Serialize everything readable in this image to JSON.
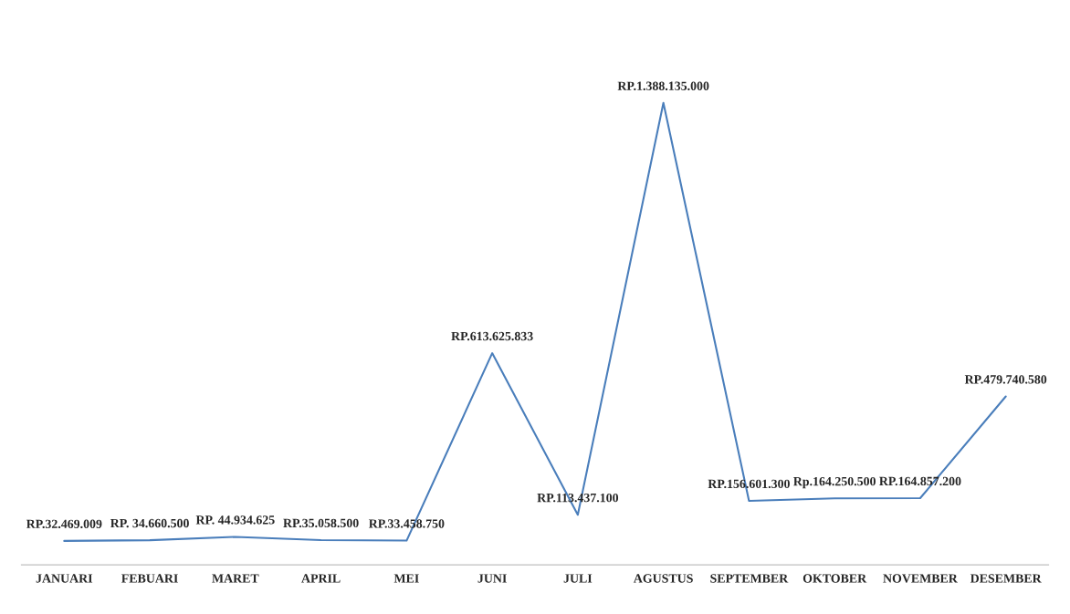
{
  "chart_data": {
    "type": "line",
    "categories": [
      "JANUARI",
      "FEBUARI",
      "MARET",
      "APRIL",
      "MEI",
      "JUNI",
      "JULI",
      "AGUSTUS",
      "SEPTEMBER",
      "OKTOBER",
      "NOVEMBER",
      "DESEMBER"
    ],
    "series": [
      {
        "color": "#4a7ebb",
        "values": [
          32469009,
          34660500,
          44934625,
          35058500,
          33458750,
          613625833,
          113437100,
          1388135000,
          156601300,
          164250500,
          164857200,
          479740580
        ],
        "value_labels": [
          "RP.32.469.009",
          "RP. 34.660.500",
          "RP. 44.934.625",
          "RP.35.058.500",
          "RP.33.458.750",
          "RP.613.625.833",
          "RP.113.437.100",
          "RP.1.388.135.000",
          "RP.156.601.300",
          "Rp.164.250.500",
          "RP.164.857.200",
          "RP.479.740.580"
        ]
      }
    ],
    "grid": false,
    "legend": false,
    "marker": "none",
    "line_style": "solid"
  }
}
